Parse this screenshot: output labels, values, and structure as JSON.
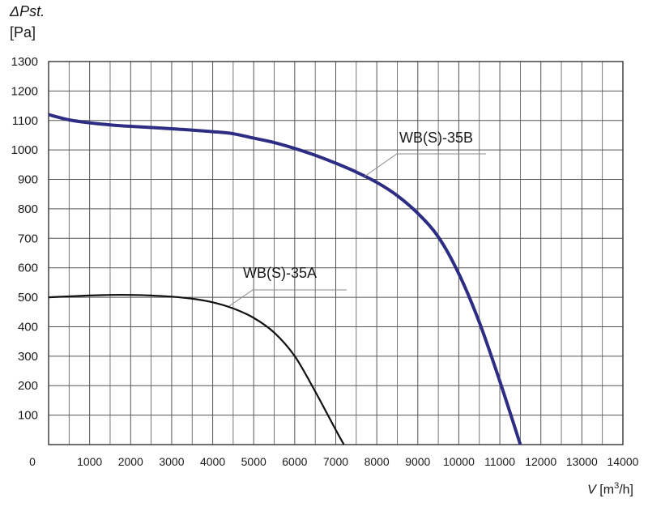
{
  "chart_data": {
    "type": "line",
    "ylabel_symbol": "ΔPst.",
    "ylabel_unit": "[Pa]",
    "xlabel_symbol": "V",
    "xlabel_unit_pre": "[m",
    "xlabel_unit_sup": "3",
    "xlabel_unit_post": "/h]",
    "xlim": [
      0,
      14000
    ],
    "ylim": [
      0,
      1300
    ],
    "x_ticks": [
      0,
      1000,
      2000,
      3000,
      4000,
      5000,
      6000,
      7000,
      8000,
      9000,
      10000,
      11000,
      12000,
      13000,
      14000
    ],
    "y_ticks": [
      100,
      200,
      300,
      400,
      500,
      600,
      700,
      800,
      900,
      1000,
      1100,
      1200,
      1300
    ],
    "grid": true,
    "series": [
      {
        "name": "WB(S)-35B",
        "color": "#2e2d84",
        "x": [
          0,
          500,
          1000,
          1500,
          2000,
          3000,
          4000,
          4500,
          5000,
          5500,
          6000,
          6500,
          7000,
          7500,
          8000,
          8500,
          9000,
          9500,
          10000,
          10500,
          11000,
          11500
        ],
        "y": [
          1120,
          1102,
          1092,
          1085,
          1080,
          1072,
          1062,
          1055,
          1040,
          1025,
          1005,
          982,
          955,
          925,
          890,
          845,
          785,
          705,
          580,
          415,
          215,
          0
        ]
      },
      {
        "name": "WB(S)-35A",
        "color": "#111111",
        "x": [
          0,
          500,
          1000,
          1500,
          2000,
          2500,
          3000,
          3500,
          4000,
          4500,
          5000,
          5500,
          6000,
          6500,
          7000,
          7200
        ],
        "y": [
          500,
          503,
          506,
          508,
          508,
          506,
          502,
          495,
          483,
          462,
          430,
          380,
          300,
          180,
          50,
          0
        ]
      }
    ],
    "annotations": [
      {
        "text": "WB(S)-35B",
        "series": 0,
        "point_x": 7700,
        "point_y": 910
      },
      {
        "text": "WB(S)-35A",
        "series": 1,
        "point_x": 4400,
        "point_y": 470
      }
    ]
  }
}
